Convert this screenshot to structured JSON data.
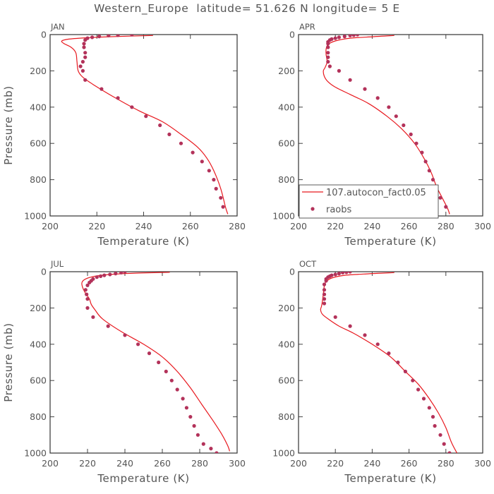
{
  "figure": {
    "title": "Western_Europe  latitude= 51.626 N longitude= 5 E",
    "line_color": "#e8191f",
    "marker_color": "#b3325a",
    "text_color": "#555555"
  },
  "legend": {
    "model_label": "107.autocon_fact0.05",
    "obs_label": "raobs"
  },
  "chart_data": [
    {
      "type": "line",
      "panel": "JAN",
      "title": "JAN",
      "xlabel": "Temperature (K)",
      "ylabel": "Pressure (mb)",
      "xlim": [
        200,
        280
      ],
      "ylim": [
        1000,
        0
      ],
      "xticks": [
        200,
        220,
        240,
        260,
        280
      ],
      "yticks": [
        0,
        200,
        400,
        600,
        800,
        1000
      ],
      "model": {
        "name": "107.autocon_fact0.05",
        "x": [
          244,
          225,
          215,
          208,
          205,
          206,
          209,
          211,
          211.5,
          212,
          214,
          219,
          228,
          238,
          248,
          256,
          263,
          267,
          270,
          273,
          275,
          276
        ],
        "y": [
          5,
          12,
          18,
          25,
          35,
          50,
          70,
          100,
          150,
          200,
          235,
          280,
          350,
          420,
          480,
          550,
          620,
          680,
          750,
          850,
          950,
          990
        ]
      },
      "obs": {
        "name": "raobs",
        "x": [
          235,
          229,
          225,
          221,
          218,
          216,
          215,
          214.5,
          214.5,
          215,
          215,
          214,
          213,
          214,
          215,
          222,
          229,
          235,
          241,
          247,
          251,
          256,
          261,
          265,
          268,
          270,
          271,
          273,
          274
        ],
        "y": [
          0,
          3,
          5,
          10,
          15,
          20,
          30,
          50,
          70,
          100,
          125,
          150,
          175,
          200,
          250,
          300,
          350,
          400,
          450,
          500,
          550,
          600,
          650,
          700,
          750,
          800,
          850,
          900,
          950
        ]
      }
    },
    {
      "type": "line",
      "panel": "APR",
      "title": "APR",
      "xlabel": "Temperature (K)",
      "ylabel": "",
      "xlim": [
        200,
        300
      ],
      "ylim": [
        1000,
        0
      ],
      "xticks": [
        200,
        220,
        240,
        260,
        280,
        300
      ],
      "yticks": [
        0,
        200,
        400,
        600,
        800,
        1000
      ],
      "model": {
        "name": "107.autocon_fact0.05",
        "x": [
          252,
          240,
          228,
          220,
          216,
          215,
          215,
          215.5,
          214.5,
          213.5,
          214,
          216,
          220,
          228,
          238,
          248,
          256,
          263,
          268,
          272,
          275,
          278,
          281,
          282
        ],
        "y": [
          5,
          12,
          20,
          35,
          55,
          80,
          110,
          150,
          180,
          200,
          230,
          260,
          290,
          330,
          380,
          450,
          520,
          600,
          680,
          760,
          840,
          900,
          960,
          990
        ]
      },
      "obs": {
        "name": "raobs",
        "x": [
          232,
          230,
          228,
          225,
          222,
          220,
          218,
          217,
          216,
          216,
          216,
          216,
          216,
          216,
          217,
          222,
          228,
          236,
          243,
          249,
          253,
          257,
          261,
          264,
          267,
          269,
          271,
          273,
          274,
          277,
          280
        ],
        "y": [
          0,
          3,
          5,
          10,
          15,
          20,
          25,
          30,
          40,
          50,
          70,
          100,
          125,
          150,
          175,
          200,
          250,
          300,
          350,
          400,
          450,
          500,
          550,
          600,
          650,
          700,
          750,
          800,
          850,
          900,
          950
        ]
      }
    },
    {
      "type": "line",
      "panel": "JUL",
      "title": "JUL",
      "xlabel": "Temperature (K)",
      "ylabel": "Pressure (mb)",
      "xlim": [
        200,
        300
      ],
      "ylim": [
        1000,
        0
      ],
      "xticks": [
        200,
        220,
        240,
        260,
        280,
        300
      ],
      "yticks": [
        0,
        200,
        400,
        600,
        800,
        1000
      ],
      "model": {
        "name": "107.autocon_fact0.05",
        "x": [
          264,
          245,
          232,
          224,
          219,
          217,
          217.5,
          219,
          221,
          222,
          224,
          228,
          238,
          250,
          260,
          268,
          275,
          281,
          287,
          292,
          295,
          296
        ],
        "y": [
          3,
          8,
          15,
          25,
          40,
          60,
          90,
          120,
          150,
          180,
          210,
          260,
          330,
          400,
          470,
          550,
          640,
          730,
          820,
          900,
          960,
          990
        ]
      },
      "obs": {
        "name": "raobs",
        "x": [
          240,
          238,
          235,
          232,
          229,
          227,
          225,
          223,
          222,
          221,
          220,
          219,
          219.5,
          220,
          220,
          223,
          231,
          240,
          247,
          253,
          258,
          262,
          265,
          268,
          271,
          273,
          275,
          277,
          279,
          282,
          286,
          289
        ],
        "y": [
          0,
          5,
          10,
          15,
          20,
          25,
          30,
          40,
          50,
          60,
          75,
          100,
          125,
          150,
          200,
          250,
          300,
          350,
          400,
          450,
          500,
          550,
          600,
          650,
          700,
          750,
          800,
          850,
          900,
          950,
          975,
          1000
        ]
      }
    },
    {
      "type": "line",
      "panel": "OCT",
      "title": "OCT",
      "xlabel": "Temperature (K)",
      "ylabel": "",
      "xlim": [
        200,
        300
      ],
      "ylim": [
        1000,
        0
      ],
      "xticks": [
        200,
        220,
        240,
        260,
        280,
        300
      ],
      "yticks": [
        0,
        200,
        400,
        600,
        800,
        1000
      ],
      "model": {
        "name": "107.autocon_fact0.05",
        "x": [
          252,
          237,
          225,
          218,
          215,
          214,
          213.5,
          213,
          212.5,
          212,
          213,
          216,
          222,
          230,
          240,
          250,
          258,
          265,
          271,
          276,
          280,
          283,
          286
        ],
        "y": [
          5,
          12,
          20,
          35,
          55,
          80,
          120,
          160,
          190,
          210,
          235,
          260,
          300,
          340,
          400,
          470,
          550,
          620,
          700,
          780,
          860,
          940,
          1000
        ]
      },
      "obs": {
        "name": "raobs",
        "x": [
          228,
          226,
          224,
          222,
          220,
          218,
          217,
          216,
          215,
          215,
          214,
          214,
          214,
          214,
          214,
          220,
          228,
          236,
          243,
          249,
          254,
          258,
          262,
          265,
          268,
          271,
          273,
          274,
          277,
          279,
          282
        ],
        "y": [
          0,
          3,
          5,
          10,
          15,
          20,
          25,
          30,
          40,
          50,
          70,
          100,
          125,
          150,
          175,
          250,
          300,
          350,
          400,
          450,
          500,
          550,
          600,
          650,
          700,
          750,
          800,
          850,
          900,
          950,
          1000
        ]
      }
    }
  ]
}
